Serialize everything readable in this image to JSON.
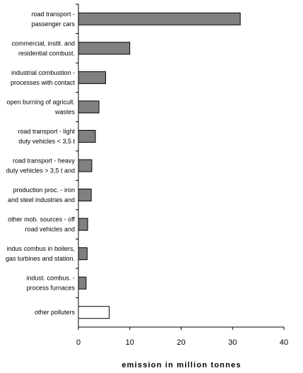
{
  "chart_data": {
    "type": "bar",
    "orientation": "horizontal",
    "categories": [
      [
        "road transport -",
        "passenger cars"
      ],
      [
        "commercial, instit. and",
        "residential combust."
      ],
      [
        "industrial combustion -",
        "processes with contact"
      ],
      [
        "open burning of agricult.",
        "wastes"
      ],
      [
        "road transport - light",
        "duty vehicles < 3,5 t"
      ],
      [
        "road transport - heavy",
        "duty vehicles > 3,5 t and"
      ],
      [
        "production proc. - iron",
        "and steel industries and"
      ],
      [
        "other mob. sources - off",
        "road vehicles and"
      ],
      [
        "indus combus in boilers,",
        "gas turbines and station."
      ],
      [
        "indust. combus. -",
        "process furnaces"
      ],
      [
        "other polluters"
      ]
    ],
    "values": [
      31.5,
      10.0,
      5.3,
      4.0,
      3.3,
      2.6,
      2.5,
      1.8,
      1.7,
      1.5,
      6.0
    ],
    "bar_colors": [
      "#808080",
      "#808080",
      "#808080",
      "#808080",
      "#808080",
      "#808080",
      "#808080",
      "#808080",
      "#808080",
      "#808080",
      "#ffffff"
    ],
    "xlim": [
      0,
      40
    ],
    "xticks": [
      "0",
      "10",
      "20",
      "30",
      "40"
    ],
    "xlabel": "emission in million tonnes",
    "ylabel": "",
    "title": "",
    "grid": false,
    "legend": "none"
  }
}
